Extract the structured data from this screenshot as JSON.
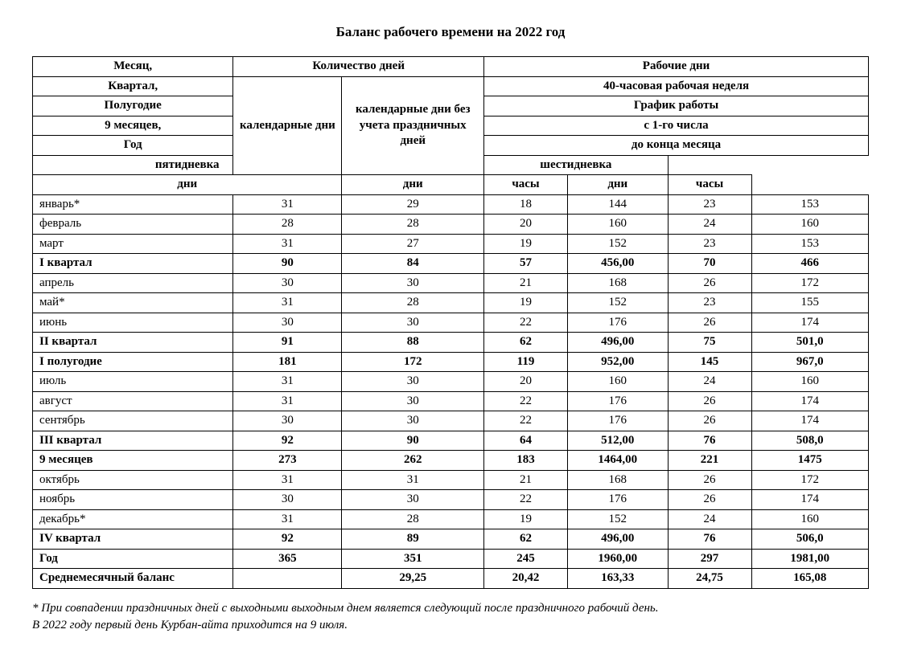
{
  "title": "Баланс рабочего времени на 2022 год",
  "header": {
    "row_labels": [
      "Месяц,",
      "Квартал,",
      "Полугодие",
      "9 месяцев,",
      "Год"
    ],
    "days_group": "Количество дней",
    "days_cal": "календарные дни",
    "days_cal_noh": "календарные дни без учета праздничных дней",
    "work_group": "Рабочие дни",
    "week40": "40-часовая рабочая неделя",
    "schedule": "График работы",
    "from1": "с 1-го числа",
    "to_end": "до конца месяца",
    "five": "пятидневка",
    "six": "шестидневка",
    "dni_label": "дни",
    "dni_label2": "дни",
    "dni_label3": "дни",
    "hours_label": "часы",
    "hours_label2": "часы"
  },
  "rows": [
    {
      "bold": false,
      "label": "январь*",
      "c": [
        "31",
        "29",
        "18",
        "144",
        "23",
        "153"
      ]
    },
    {
      "bold": false,
      "label": "февраль",
      "c": [
        "28",
        "28",
        "20",
        "160",
        "24",
        "160"
      ]
    },
    {
      "bold": false,
      "label": "март",
      "c": [
        "31",
        "27",
        "19",
        "152",
        "23",
        "153"
      ]
    },
    {
      "bold": true,
      "label": "I квартал",
      "c": [
        "90",
        "84",
        "57",
        "456,00",
        "70",
        "466"
      ]
    },
    {
      "bold": false,
      "label": "апрель",
      "c": [
        "30",
        "30",
        "21",
        "168",
        "26",
        "172"
      ]
    },
    {
      "bold": false,
      "label": "май*",
      "c": [
        "31",
        "28",
        "19",
        "152",
        "23",
        "155"
      ]
    },
    {
      "bold": false,
      "label": "июнь",
      "c": [
        "30",
        "30",
        "22",
        "176",
        "26",
        "174"
      ]
    },
    {
      "bold": true,
      "label": "II квартал",
      "c": [
        "91",
        "88",
        "62",
        "496,00",
        "75",
        "501,0"
      ]
    },
    {
      "bold": true,
      "label": "I полугодие",
      "c": [
        "181",
        "172",
        "119",
        "952,00",
        "145",
        "967,0"
      ]
    },
    {
      "bold": false,
      "label": "июль",
      "c": [
        "31",
        "30",
        "20",
        "160",
        "24",
        "160"
      ]
    },
    {
      "bold": false,
      "label": "август",
      "c": [
        "31",
        "30",
        "22",
        "176",
        "26",
        "174"
      ]
    },
    {
      "bold": false,
      "label": "сентябрь",
      "c": [
        "30",
        "30",
        "22",
        "176",
        "26",
        "174"
      ]
    },
    {
      "bold": true,
      "label": "III квартал",
      "c": [
        "92",
        "90",
        "64",
        "512,00",
        "76",
        "508,0"
      ]
    },
    {
      "bold": true,
      "label": "9 месяцев",
      "c": [
        "273",
        "262",
        "183",
        "1464,00",
        "221",
        "1475"
      ]
    },
    {
      "bold": false,
      "label": "октябрь",
      "c": [
        "31",
        "31",
        "21",
        "168",
        "26",
        "172"
      ]
    },
    {
      "bold": false,
      "label": "ноябрь",
      "c": [
        "30",
        "30",
        "22",
        "176",
        "26",
        "174"
      ]
    },
    {
      "bold": false,
      "label": "декабрь*",
      "c": [
        "31",
        "28",
        "19",
        "152",
        "24",
        "160"
      ]
    },
    {
      "bold": true,
      "label": "IV квартал",
      "c": [
        "92",
        "89",
        "62",
        "496,00",
        "76",
        "506,0"
      ]
    },
    {
      "bold": true,
      "label": "Год",
      "c": [
        "365",
        "351",
        "245",
        "1960,00",
        "297",
        "1981,00"
      ]
    },
    {
      "bold": true,
      "label": "Среднемесячный баланс",
      "c": [
        "",
        "29,25",
        "20,42",
        "163,33",
        "24,75",
        "165,08"
      ]
    }
  ],
  "footnote_line1": "* При совпадении праздничных дней с выходными выходным днем является следующий после праздничного рабочий день.",
  "footnote_line2": "В 2022 году первый день Курбан-айта приходится на 9 июля.",
  "style": {
    "type": "table",
    "font_family": "Times New Roman",
    "title_fontsize_pt": 13,
    "body_fontsize_pt": 11,
    "border_color": "#000000",
    "text_color": "#000000",
    "background_color": "#ffffff",
    "col_widths_pct": [
      24,
      13,
      17,
      10,
      12,
      10,
      14
    ]
  }
}
